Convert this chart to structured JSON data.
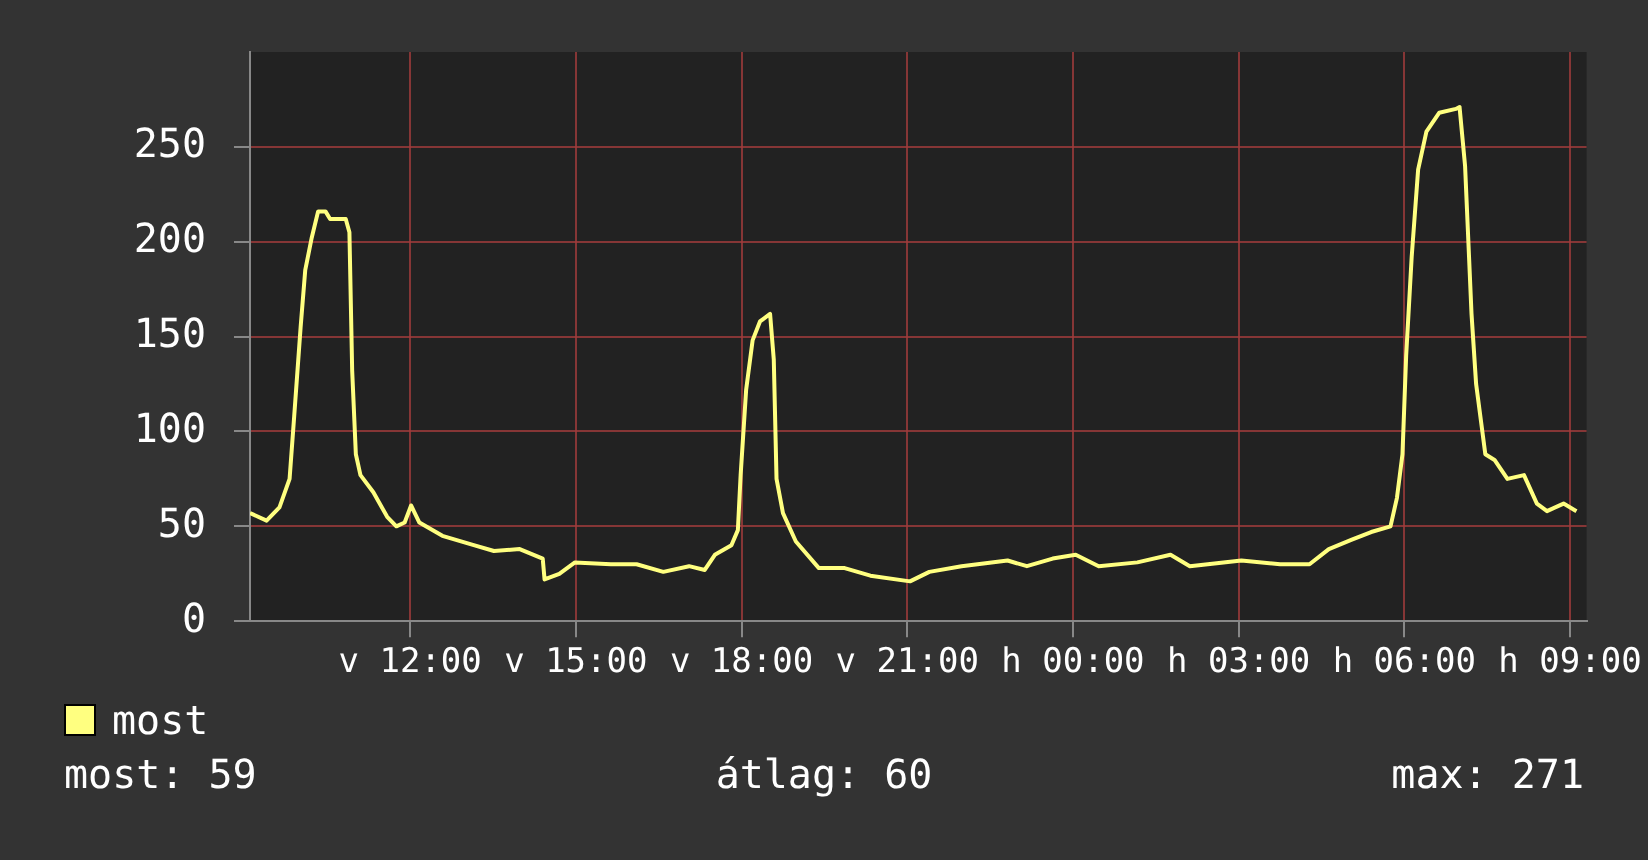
{
  "chart_data": {
    "type": "line",
    "x": [
      "--06-02T09:06",
      "--06-02T09:24",
      "--06-02T09:38",
      "--06-02T09:49",
      "--06-02T09:54",
      "--06-02T10:01",
      "--06-02T10:06",
      "--06-02T10:13",
      "--06-02T10:20",
      "--06-02T10:28",
      "--06-02T10:33",
      "--06-02T10:50",
      "--06-02T10:54",
      "--06-02T10:57",
      "--06-02T11:01",
      "--06-02T11:06",
      "--06-02T11:20",
      "--06-02T11:35",
      "--06-02T11:45",
      "--06-02T11:54",
      "--06-02T12:01",
      "--06-02T12:10",
      "--06-02T12:35",
      "--06-02T13:10",
      "--06-02T13:31",
      "--06-02T13:59",
      "--06-02T14:24",
      "--06-02T14:26",
      "--06-02T14:42",
      "--06-02T14:59",
      "--06-02T15:38",
      "--06-02T16:06",
      "--06-02T16:35",
      "--06-02T17:03",
      "--06-02T17:20",
      "--06-02T17:31",
      "--06-02T17:49",
      "--06-02T17:56",
      "--06-02T17:59",
      "--06-02T18:05",
      "--06-02T18:12",
      "--06-02T18:20",
      "--06-02T18:31",
      "--06-02T18:35",
      "--06-02T18:38",
      "--06-02T18:45",
      "--06-02T18:59",
      "--06-02T19:24",
      "--06-02T19:52",
      "--06-02T20:20",
      "--06-02T21:03",
      "--06-02T21:24",
      "--06-02T21:59",
      "--06-02T22:49",
      "--06-02T23:10",
      "--06-02T23:38",
      "--06-03T00:03",
      "--06-03T00:28",
      "--06-03T01:10",
      "--06-03T01:46",
      "--06-03T02:07",
      "--06-03T03:03",
      "--06-03T03:45",
      "--06-03T04:17",
      "--06-03T04:38",
      "--06-03T05:03",
      "--06-03T05:24",
      "--06-03T05:45",
      "--06-03T05:52",
      "--06-03T05:58",
      "--06-03T06:02",
      "--06-03T06:08",
      "--06-03T06:15",
      "--06-03T06:24",
      "--06-03T06:38",
      "--06-03T06:56",
      "--06-03T07:00",
      "--06-03T07:06",
      "--06-03T07:13",
      "--06-03T07:18",
      "--06-03T07:28",
      "--06-03T07:38",
      "--06-03T07:52",
      "--06-03T08:10",
      "--06-03T08:24",
      "--06-03T08:35",
      "--06-03T08:53",
      "--06-03T09:07"
    ],
    "series": [
      {
        "name": "most",
        "color": "#ffff80",
        "values": [
          57,
          53,
          60,
          75,
          108,
          155,
          185,
          202,
          216,
          216,
          212,
          212,
          205,
          132,
          88,
          77,
          68,
          55,
          50,
          52,
          61,
          52,
          45,
          40,
          37,
          38,
          33,
          22,
          25,
          31,
          30,
          30,
          26,
          29,
          27,
          35,
          40,
          48,
          77,
          122,
          148,
          158,
          162,
          138,
          75,
          57,
          42,
          28,
          28,
          24,
          21,
          26,
          29,
          32,
          29,
          33,
          35,
          29,
          31,
          35,
          29,
          32,
          30,
          30,
          38,
          43,
          47,
          50,
          65,
          88,
          140,
          192,
          238,
          258,
          268,
          270,
          271,
          240,
          162,
          125,
          88,
          85,
          75,
          77,
          62,
          58,
          62,
          58
        ]
      }
    ],
    "xlim": [
      "--06-02T09:06",
      "--06-03T09:18"
    ],
    "xticks": [
      {
        "value": "--06-02T12:00",
        "label": "v 12:00"
      },
      {
        "value": "--06-02T15:00",
        "label": "v 15:00"
      },
      {
        "value": "--06-02T18:00",
        "label": "v 18:00"
      },
      {
        "value": "--06-02T21:00",
        "label": "v 21:00"
      },
      {
        "value": "--06-03T00:00",
        "label": "h 00:00"
      },
      {
        "value": "--06-03T03:00",
        "label": "h 03:00"
      },
      {
        "value": "--06-03T06:00",
        "label": "h 06:00"
      },
      {
        "value": "--06-03T09:00",
        "label": "h 09:00"
      }
    ],
    "ylim": [
      0,
      300
    ],
    "yticks": [
      0,
      50,
      100,
      150,
      200,
      250
    ],
    "grid": true,
    "legend": "bottom left",
    "marker": "none",
    "annotations": [
      "most: 59",
      "átlag: 60",
      "max: 271"
    ]
  }
}
